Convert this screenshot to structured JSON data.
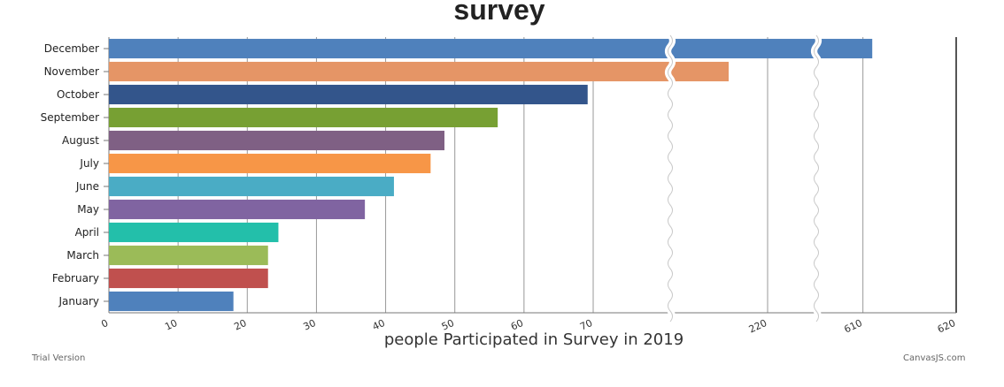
{
  "chart_data": {
    "type": "bar",
    "orientation": "horizontal",
    "title": "survey",
    "xlabel": "people Participated in Survey in 2019",
    "ylabel": "",
    "categories": [
      "January",
      "February",
      "March",
      "April",
      "May",
      "June",
      "July",
      "August",
      "September",
      "October",
      "November",
      "December"
    ],
    "values": [
      18,
      23,
      23,
      24.5,
      37,
      41.2,
      46.5,
      48.5,
      56.2,
      69.2,
      216,
      611
    ],
    "colors": [
      "#4F81BC",
      "#C0504E",
      "#9BBB58",
      "#23BFAA",
      "#8064A1",
      "#4AACC5",
      "#F79647",
      "#7F6084",
      "#77A033",
      "#33558B",
      "#E59566",
      "#4F81BC"
    ],
    "xticks": [
      0,
      10,
      20,
      30,
      40,
      50,
      60,
      70,
      220,
      610,
      620
    ],
    "scale_breaks": [
      [
        70,
        210
      ],
      [
        225,
        605
      ]
    ],
    "grid": true,
    "legend": "none"
  },
  "footer": {
    "left": "Trial Version",
    "right": "CanvasJS.com"
  }
}
